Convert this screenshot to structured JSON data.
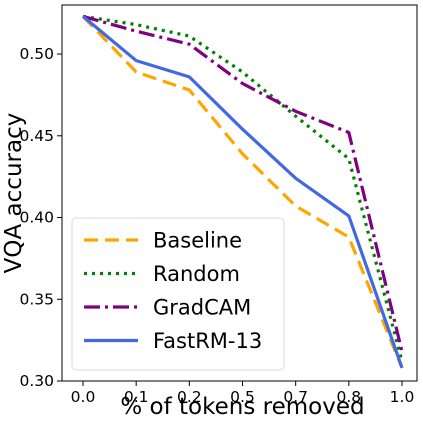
{
  "chart_data": {
    "type": "line",
    "title": "",
    "xlabel": "% of tokens removed",
    "ylabel": "VQA accuracy",
    "categories": [
      "0.0",
      "0.1",
      "0.2",
      "0.5",
      "0.7",
      "0.8",
      "1.0"
    ],
    "ylim": [
      0.3,
      0.53
    ],
    "yticks": [
      "0.30",
      "0.35",
      "0.40",
      "0.45",
      "0.50"
    ],
    "grid": false,
    "legend_position": "bottom-left",
    "series": [
      {
        "name": "Baseline",
        "color": "#FFA500",
        "style": "dashed",
        "values": [
          0.523,
          0.489,
          0.478,
          0.439,
          0.407,
          0.388,
          0.308
        ]
      },
      {
        "name": "Random",
        "color": "#008000",
        "style": "dotted",
        "values": [
          0.523,
          0.518,
          0.511,
          0.489,
          0.462,
          0.436,
          0.312
        ]
      },
      {
        "name": "GradCAM",
        "color": "#800080",
        "style": "dashdot",
        "values": [
          0.523,
          0.514,
          0.506,
          0.482,
          0.465,
          0.452,
          0.318
        ]
      },
      {
        "name": "FastRM-13",
        "color": "#4169E1",
        "style": "solid",
        "values": [
          0.523,
          0.496,
          0.486,
          0.454,
          0.424,
          0.401,
          0.308
        ]
      }
    ]
  }
}
